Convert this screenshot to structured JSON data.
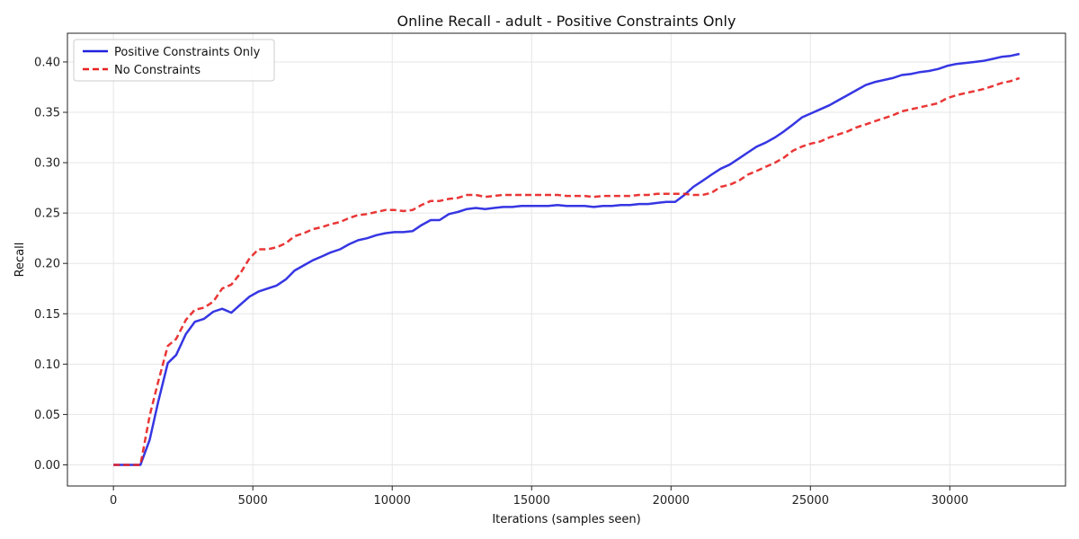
{
  "chart_data": {
    "type": "line",
    "title": "Online Recall - adult - Positive Constraints Only",
    "xlabel": "Iterations (samples seen)",
    "ylabel": "Recall",
    "xlim": [
      -1650,
      34150
    ],
    "ylim": [
      -0.021,
      0.4285
    ],
    "xticks": [
      0,
      5000,
      10000,
      15000,
      20000,
      25000,
      30000
    ],
    "yticks": [
      0.0,
      0.05,
      0.1,
      0.15,
      0.2,
      0.25,
      0.3,
      0.35,
      0.4
    ],
    "ytick_labels": [
      "0.00",
      "0.05",
      "0.10",
      "0.15",
      "0.20",
      "0.25",
      "0.30",
      "0.35",
      "0.40"
    ],
    "grid": true,
    "legend": "top-left",
    "series": [
      {
        "name": "Positive Constraints Only",
        "color": "#2020e0",
        "style": "solid",
        "x": [
          0,
          300,
          650,
          970,
          1300,
          1600,
          1950,
          2250,
          2600,
          2920,
          3250,
          3580,
          3900,
          4230,
          4550,
          4880,
          5200,
          5530,
          5850,
          6180,
          6500,
          6830,
          7150,
          7480,
          7800,
          8130,
          8450,
          8780,
          9100,
          9430,
          9750,
          10080,
          10400,
          10730,
          11050,
          11380,
          11700,
          12030,
          12350,
          12680,
          13000,
          13330,
          13650,
          13980,
          14300,
          14630,
          14950,
          15280,
          15600,
          15930,
          16250,
          16580,
          16900,
          17230,
          17550,
          17880,
          18200,
          18530,
          18850,
          19180,
          19500,
          19830,
          20150,
          20480,
          20800,
          21130,
          21450,
          21780,
          22100,
          22430,
          22750,
          23080,
          23400,
          23730,
          24050,
          24380,
          24700,
          25030,
          25350,
          25680,
          26000,
          26330,
          26650,
          26980,
          27300,
          27630,
          27950,
          28280,
          28600,
          28930,
          29250,
          29580,
          29900,
          30230,
          30550,
          30880,
          31200,
          31530,
          31850,
          32180,
          32500
        ],
        "y": [
          0.0,
          0.0,
          0.0,
          0.0,
          0.025,
          0.062,
          0.101,
          0.109,
          0.13,
          0.142,
          0.145,
          0.152,
          0.155,
          0.151,
          0.159,
          0.167,
          0.172,
          0.175,
          0.178,
          0.184,
          0.193,
          0.198,
          0.203,
          0.207,
          0.211,
          0.214,
          0.219,
          0.223,
          0.225,
          0.228,
          0.23,
          0.231,
          0.231,
          0.232,
          0.238,
          0.243,
          0.243,
          0.249,
          0.251,
          0.254,
          0.255,
          0.254,
          0.255,
          0.256,
          0.256,
          0.257,
          0.257,
          0.257,
          0.257,
          0.258,
          0.257,
          0.257,
          0.257,
          0.256,
          0.257,
          0.257,
          0.258,
          0.258,
          0.259,
          0.259,
          0.26,
          0.261,
          0.261,
          0.268,
          0.276,
          0.282,
          0.288,
          0.294,
          0.298,
          0.304,
          0.31,
          0.316,
          0.32,
          0.325,
          0.331,
          0.338,
          0.345,
          0.349,
          0.353,
          0.357,
          0.362,
          0.367,
          0.372,
          0.377,
          0.38,
          0.382,
          0.384,
          0.387,
          0.388,
          0.39,
          0.391,
          0.393,
          0.396,
          0.398,
          0.399,
          0.4,
          0.401,
          0.403,
          0.405,
          0.406,
          0.408
        ]
      },
      {
        "name": "No Constraints",
        "color": "#e82020",
        "style": "dashed",
        "x": [
          0,
          300,
          650,
          970,
          1300,
          1600,
          1950,
          2250,
          2600,
          2920,
          3250,
          3580,
          3900,
          4230,
          4550,
          4880,
          5200,
          5530,
          5850,
          6180,
          6500,
          6830,
          7150,
          7480,
          7800,
          8130,
          8450,
          8780,
          9100,
          9430,
          9750,
          10080,
          10400,
          10730,
          11050,
          11380,
          11700,
          12030,
          12350,
          12680,
          13000,
          13330,
          13650,
          13980,
          14300,
          14630,
          14950,
          15280,
          15600,
          15930,
          16250,
          16580,
          16900,
          17230,
          17550,
          17880,
          18200,
          18530,
          18850,
          19180,
          19500,
          19830,
          20150,
          20480,
          20800,
          21130,
          21450,
          21780,
          22100,
          22430,
          22750,
          23080,
          23400,
          23730,
          24050,
          24380,
          24700,
          25030,
          25350,
          25680,
          26000,
          26330,
          26650,
          26980,
          27300,
          27630,
          27950,
          28280,
          28600,
          28930,
          29250,
          29580,
          29900,
          30230,
          30550,
          30880,
          31200,
          31530,
          31850,
          32180,
          32500
        ],
        "y": [
          0.0,
          0.0,
          0.0,
          0.0,
          0.049,
          0.082,
          0.118,
          0.125,
          0.144,
          0.154,
          0.156,
          0.162,
          0.175,
          0.179,
          0.19,
          0.205,
          0.214,
          0.214,
          0.216,
          0.22,
          0.227,
          0.23,
          0.234,
          0.236,
          0.239,
          0.241,
          0.245,
          0.248,
          0.249,
          0.251,
          0.253,
          0.253,
          0.252,
          0.253,
          0.258,
          0.262,
          0.262,
          0.264,
          0.265,
          0.268,
          0.268,
          0.266,
          0.267,
          0.268,
          0.268,
          0.268,
          0.268,
          0.268,
          0.268,
          0.268,
          0.267,
          0.267,
          0.267,
          0.266,
          0.267,
          0.267,
          0.267,
          0.267,
          0.268,
          0.268,
          0.269,
          0.269,
          0.269,
          0.269,
          0.268,
          0.268,
          0.27,
          0.276,
          0.278,
          0.282,
          0.288,
          0.292,
          0.296,
          0.3,
          0.305,
          0.312,
          0.316,
          0.319,
          0.321,
          0.325,
          0.328,
          0.331,
          0.335,
          0.338,
          0.341,
          0.344,
          0.347,
          0.351,
          0.353,
          0.355,
          0.357,
          0.359,
          0.364,
          0.367,
          0.369,
          0.371,
          0.373,
          0.376,
          0.379,
          0.381,
          0.384
        ]
      }
    ]
  }
}
